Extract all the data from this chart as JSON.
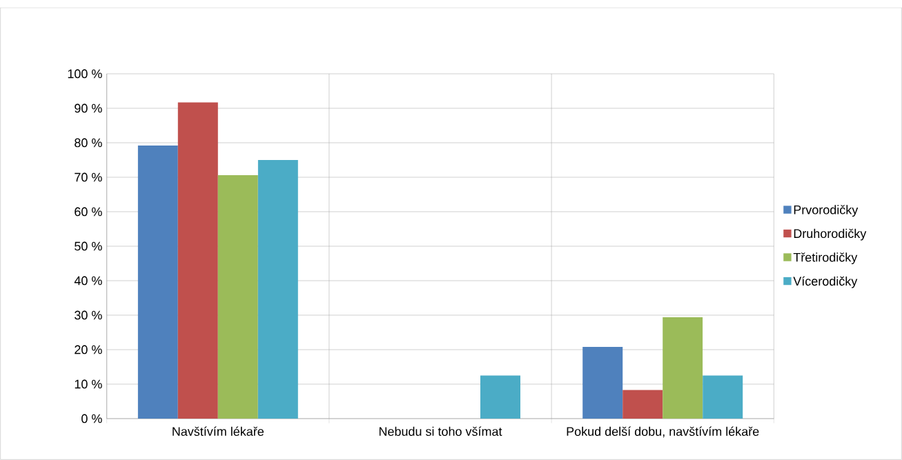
{
  "chart_data": {
    "type": "bar",
    "categories": [
      "Navštívím lékaře",
      "Nebudu si toho všímat",
      "Pokud  delší dobu, navštívím lékaře"
    ],
    "series": [
      {
        "name": "Prvorodičky",
        "color": "#4f81bd",
        "values": [
          79.2,
          0,
          20.8
        ]
      },
      {
        "name": "Druhorodičky",
        "color": "#c0504d",
        "values": [
          91.7,
          0,
          8.3
        ]
      },
      {
        "name": "Třetirodičky",
        "color": "#9bbb59",
        "values": [
          70.6,
          0,
          29.4
        ]
      },
      {
        "name": "Vícerodičky",
        "color": "#4bacc6",
        "values": [
          75,
          12.5,
          12.5
        ]
      }
    ],
    "ylim": [
      0,
      100
    ],
    "yticks": [
      {
        "value": 0,
        "label": "0 %"
      },
      {
        "value": 10,
        "label": "10 %"
      },
      {
        "value": 20,
        "label": "20 %"
      },
      {
        "value": 30,
        "label": "30 %"
      },
      {
        "value": 40,
        "label": "40 %"
      },
      {
        "value": 50,
        "label": "50 %"
      },
      {
        "value": 60,
        "label": "60 %"
      },
      {
        "value": 70,
        "label": "70 %"
      },
      {
        "value": 80,
        "label": "80 %"
      },
      {
        "value": 90,
        "label": "90 %"
      },
      {
        "value": 100,
        "label": "100 %"
      }
    ],
    "grid": true,
    "legend": "right"
  }
}
